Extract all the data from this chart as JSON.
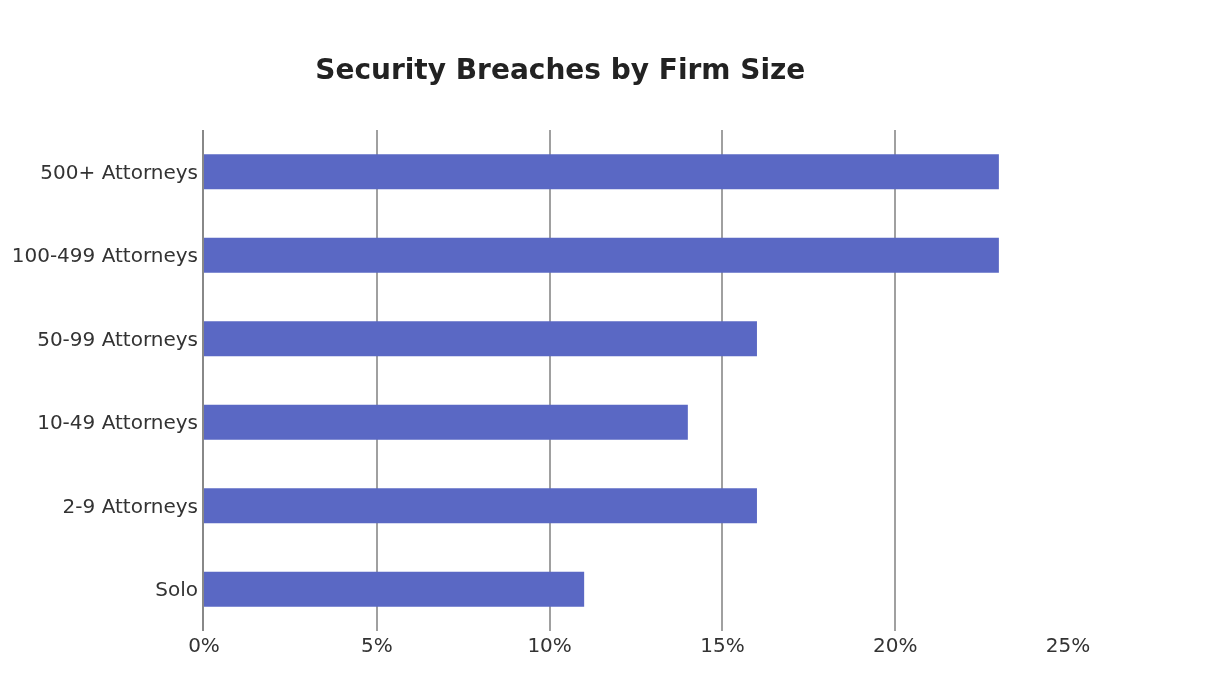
{
  "chart_data": {
    "type": "bar",
    "orientation": "horizontal",
    "title": "Security Breaches by Firm Size",
    "categories": [
      "500+ Attorneys",
      "100-499 Attorneys",
      "50-99 Attorneys",
      "10-49 Attorneys",
      "2-9 Attorneys",
      "Solo"
    ],
    "values": [
      23,
      23,
      16,
      14,
      16,
      11
    ],
    "color": "#5a68c4",
    "xlim": [
      0,
      25
    ],
    "xticks": [
      {
        "value": 0,
        "label": "0%"
      },
      {
        "value": 5,
        "label": "5%"
      },
      {
        "value": 10,
        "label": "10%"
      },
      {
        "value": 15,
        "label": "15%"
      },
      {
        "value": 20,
        "label": "20%"
      },
      {
        "value": 25,
        "label": "25%"
      }
    ],
    "grid": "x"
  }
}
